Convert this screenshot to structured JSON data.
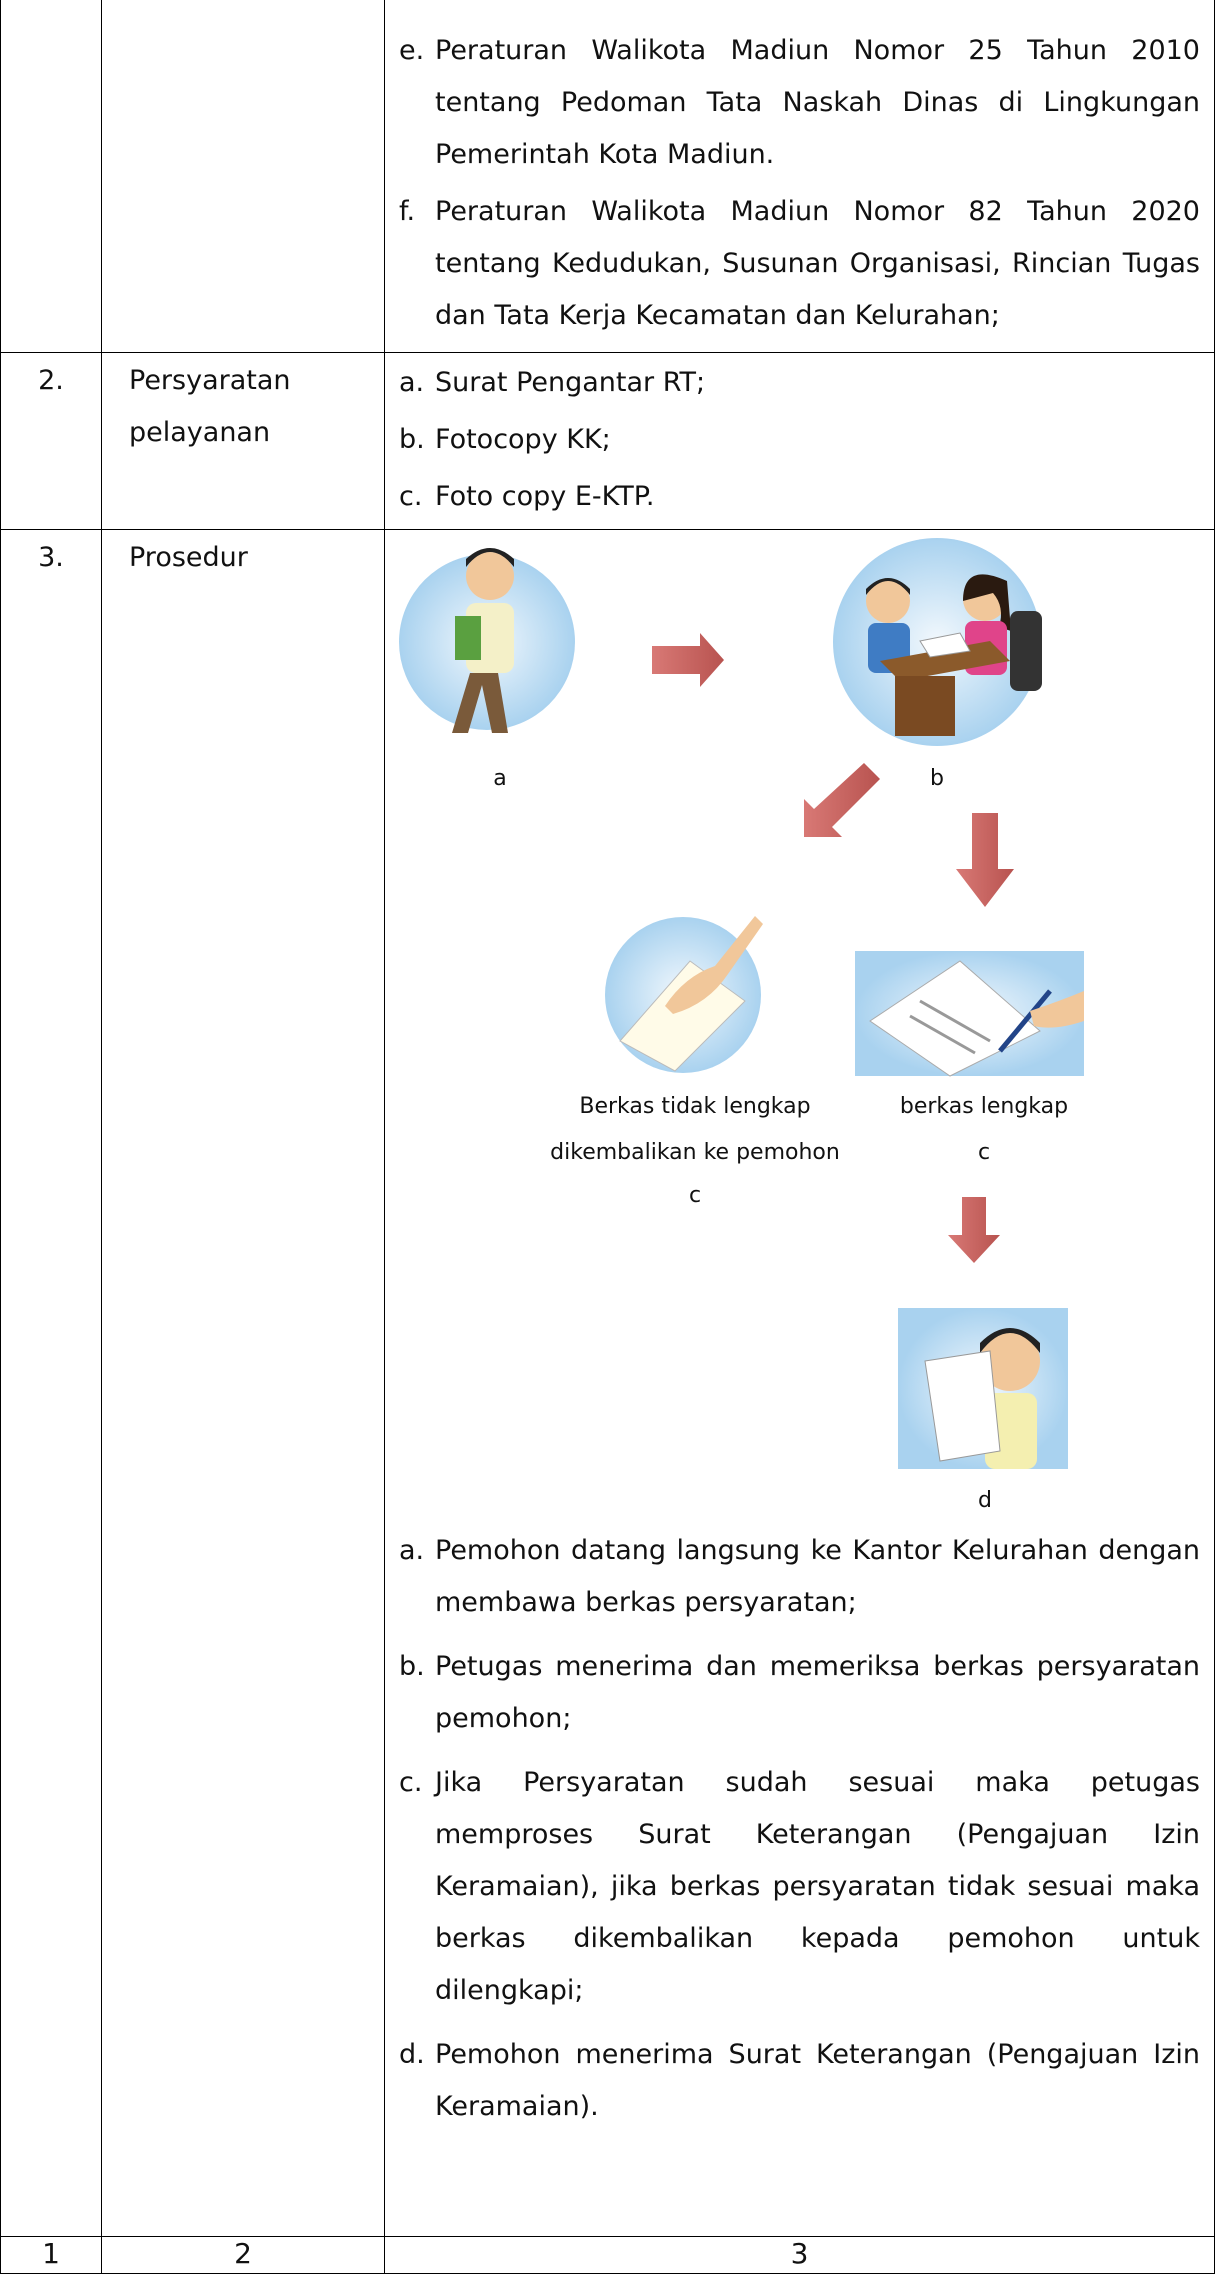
{
  "table": {
    "rows": [
      {
        "items": [
          {
            "marker": "e.",
            "text": "Peraturan Walikota Madiun Nomor 25 Tahun 2010 tentang Pedoman Tata Naskah Dinas di Lingkungan Pemerintah Kota Madiun."
          },
          {
            "marker": "f.",
            "text": "Peraturan Walikota Madiun Nomor 82 Tahun 2020 tentang Kedudukan, Susunan Organisasi, Rincian Tugas dan Tata Kerja Kecamatan dan Kelurahan;"
          }
        ]
      },
      {
        "number": "2.",
        "title": "Persyaratan pelayanan",
        "items": [
          {
            "marker": "a.",
            "text": "Surat Pengantar RT;"
          },
          {
            "marker": "b.",
            "text": "Fotocopy KK;"
          },
          {
            "marker": "c.",
            "text": "Foto copy E-KTP."
          }
        ]
      },
      {
        "number": "3.",
        "title": "Prosedur",
        "diagram": {
          "label_a": "a",
          "label_b": "b",
          "label_c_rejected": [
            "Berkas tidak lengkap",
            "dikembalikan ke pemohon",
            "c"
          ],
          "label_c_complete": [
            "berkas lengkap",
            "c"
          ],
          "label_d": "d"
        },
        "items": [
          {
            "marker": "a.",
            "text": "Pemohon datang langsung ke Kantor Kelurahan dengan membawa berkas persyaratan;"
          },
          {
            "marker": "b.",
            "text": "Petugas menerima dan memeriksa berkas persyaratan pemohon;"
          },
          {
            "marker": "c.",
            "text": "Jika Persyaratan sudah sesuai maka petugas memproses Surat Keterangan (Pengajuan Izin Keramaian), jika berkas persyaratan tidak sesuai maka berkas dikembalikan kepada pemohon untuk dilengkapi;"
          },
          {
            "marker": "d.",
            "text": "Pemohon menerima Surat Keterangan (Pengajuan Izin Keramaian)."
          }
        ]
      }
    ],
    "footer": [
      "1",
      "2",
      "3"
    ]
  }
}
